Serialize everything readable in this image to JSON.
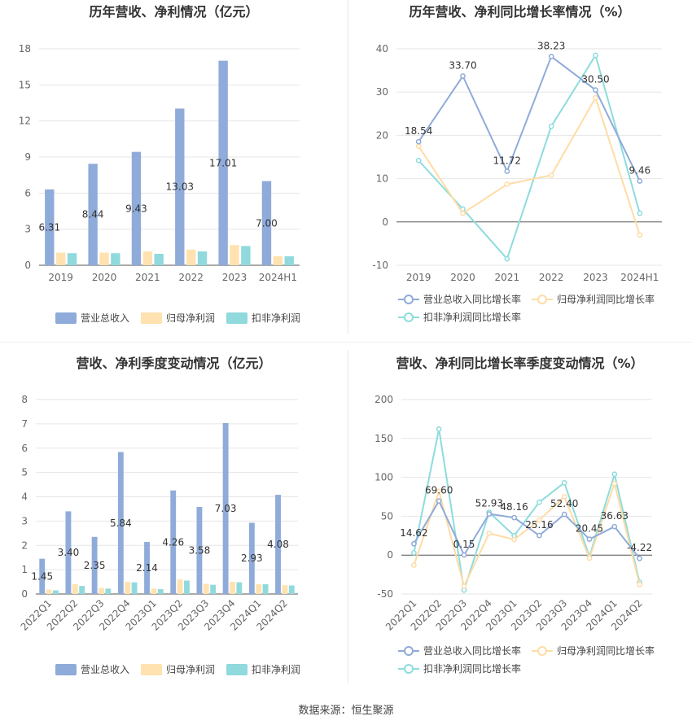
{
  "footer": {
    "source": "数据来源：恒生聚源"
  },
  "colors": {
    "revenue": "#8fabd9",
    "parent_np": "#ffe2b0",
    "deduct_np": "#90d9dc",
    "grid": "#e6e6e6",
    "axis": "#666666"
  },
  "chart_data": [
    {
      "type": "bar",
      "title": "历年营收、净利情况（亿元）",
      "categories": [
        "2019",
        "2020",
        "2021",
        "2022",
        "2023",
        "2024H1"
      ],
      "ylim": [
        0,
        18
      ],
      "yticks": [
        0,
        3,
        6,
        9,
        12,
        15,
        18
      ],
      "legend_position": "bottom",
      "grid": true,
      "series": [
        {
          "name": "营业总收入",
          "values": [
            6.31,
            8.44,
            9.43,
            13.03,
            17.01,
            7.0
          ],
          "labels": [
            "6.31",
            "8.44",
            "9.43",
            "13.03",
            "17.01",
            "7.00"
          ]
        },
        {
          "name": "归母净利润",
          "values": [
            1.05,
            1.05,
            1.15,
            1.3,
            1.68,
            0.75
          ]
        },
        {
          "name": "扣非净利润",
          "values": [
            1.0,
            1.0,
            0.95,
            1.15,
            1.6,
            0.75
          ]
        }
      ]
    },
    {
      "type": "line",
      "title": "历年营收、净利同比增长率情况（%）",
      "categories": [
        "2019",
        "2020",
        "2021",
        "2022",
        "2023",
        "2024H1"
      ],
      "ylim": [
        -10,
        40
      ],
      "yticks": [
        -10,
        0,
        10,
        20,
        30,
        40
      ],
      "legend_position": "bottom",
      "grid": true,
      "series": [
        {
          "name": "营业总收入同比增长率",
          "values": [
            18.54,
            33.7,
            11.72,
            38.23,
            30.5,
            9.46
          ],
          "labels": [
            "18.54",
            "33.70",
            "11.72",
            "38.23",
            "30.50",
            "9.46"
          ]
        },
        {
          "name": "归母净利润同比增长率",
          "values": [
            17.5,
            2.0,
            8.7,
            10.8,
            28.7,
            -3.0
          ]
        },
        {
          "name": "扣非净利润同比增长率",
          "values": [
            14.2,
            3.0,
            -8.5,
            22.1,
            38.5,
            2.0
          ]
        }
      ]
    },
    {
      "type": "bar",
      "title": "营收、净利季度变动情况（亿元）",
      "categories": [
        "2022Q1",
        "2022Q2",
        "2022Q3",
        "2022Q4",
        "2023Q1",
        "2023Q2",
        "2023Q3",
        "2023Q4",
        "2024Q1",
        "2024Q2"
      ],
      "ylim": [
        0,
        8
      ],
      "yticks": [
        0,
        1,
        2,
        3,
        4,
        5,
        6,
        7,
        8
      ],
      "legend_position": "bottom",
      "grid": true,
      "series": [
        {
          "name": "营业总收入",
          "values": [
            1.45,
            3.4,
            2.35,
            5.84,
            2.14,
            4.26,
            3.58,
            7.03,
            2.93,
            4.08
          ],
          "labels": [
            "1.45",
            "3.40",
            "2.35",
            "5.84",
            "2.14",
            "4.26",
            "3.58",
            "7.03",
            "2.93",
            "4.08"
          ]
        },
        {
          "name": "归母净利润",
          "values": [
            0.18,
            0.4,
            0.25,
            0.5,
            0.22,
            0.6,
            0.42,
            0.5,
            0.4,
            0.36
          ]
        },
        {
          "name": "扣非净利润",
          "values": [
            0.15,
            0.33,
            0.22,
            0.48,
            0.2,
            0.55,
            0.38,
            0.48,
            0.4,
            0.35
          ]
        }
      ]
    },
    {
      "type": "line",
      "title": "营收、净利同比增长率季度变动情况（%）",
      "categories": [
        "2022Q1",
        "2022Q2",
        "2022Q3",
        "2022Q4",
        "2023Q1",
        "2023Q2",
        "2023Q3",
        "2023Q4",
        "2024Q1",
        "2024Q2"
      ],
      "ylim": [
        -50,
        200
      ],
      "yticks": [
        -50,
        0,
        50,
        100,
        150,
        200
      ],
      "legend_position": "bottom",
      "grid": true,
      "series": [
        {
          "name": "营业总收入同比增长率",
          "values": [
            14.62,
            69.6,
            0.15,
            52.93,
            48.16,
            25.16,
            52.4,
            20.45,
            36.63,
            -4.22
          ],
          "labels": [
            "14.62",
            "69.60",
            "0.15",
            "52.93",
            "48.16",
            "25.16",
            "52.40",
            "20.45",
            "36.63",
            "-4.22"
          ]
        },
        {
          "name": "归母净利润同比增长率",
          "values": [
            -13,
            82,
            -40,
            28,
            20,
            45,
            75,
            -4,
            92,
            -38
          ]
        },
        {
          "name": "扣非净利润同比增长率",
          "values": [
            3,
            162,
            -45,
            55,
            25,
            68,
            93,
            -2,
            104,
            -35
          ]
        }
      ]
    }
  ]
}
